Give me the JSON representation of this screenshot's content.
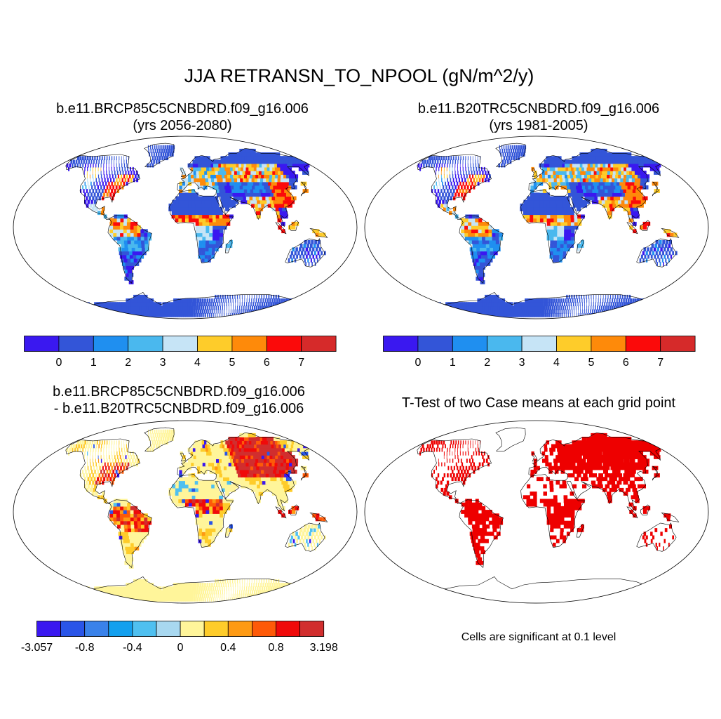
{
  "title": "JJA RETRANSN_TO_NPOOL (gN/m^2/y)",
  "panels": [
    {
      "title_line1": "b.e11.BRCP85C5CNBDRD.f09_g16.006",
      "title_line2": "(yrs 2056-2080)",
      "colorbar": {
        "colors": [
          "#3a18f0",
          "#3355d8",
          "#1f8ff0",
          "#4ab8ee",
          "#c6e4f6",
          "#fecc2a",
          "#fe8a0a",
          "#fb0a0a",
          "#d62a2a"
        ],
        "tick_labels": [
          "0",
          "1",
          "2",
          "3",
          "4",
          "5",
          "6",
          "7"
        ]
      }
    },
    {
      "title_line1": "b.e11.B20TRC5CNBDRD.f09_g16.006",
      "title_line2": "(yrs 1981-2005)",
      "colorbar": {
        "colors": [
          "#3a18f0",
          "#3355d8",
          "#1f8ff0",
          "#4ab8ee",
          "#c6e4f6",
          "#fecc2a",
          "#fe8a0a",
          "#fb0a0a",
          "#d62a2a"
        ],
        "tick_labels": [
          "0",
          "1",
          "2",
          "3",
          "4",
          "5",
          "6",
          "7"
        ]
      }
    },
    {
      "title_line1": "b.e11.BRCP85C5CNBDRD.f09_g16.006",
      "title_line2": "- b.e11.B20TRC5CNBDRD.f09_g16.006",
      "colorbar": {
        "colors": [
          "#3a18f0",
          "#2a55e8",
          "#3a82ea",
          "#14a0ee",
          "#4fc0f0",
          "#a8d8f0",
          "#fff59a",
          "#fecc2a",
          "#fe9a14",
          "#fe5a08",
          "#f00a0a",
          "#d12e2e"
        ],
        "tick_labels": [
          "-3.057",
          "-0.8",
          "-0.4",
          "0",
          "0.4",
          "0.8",
          "3.198"
        ]
      }
    },
    {
      "title_line1": "T-Test of two Case means at each grid point",
      "note": "Cells are significant at 0.1 level",
      "significant_color": "#ee0000"
    }
  ]
}
